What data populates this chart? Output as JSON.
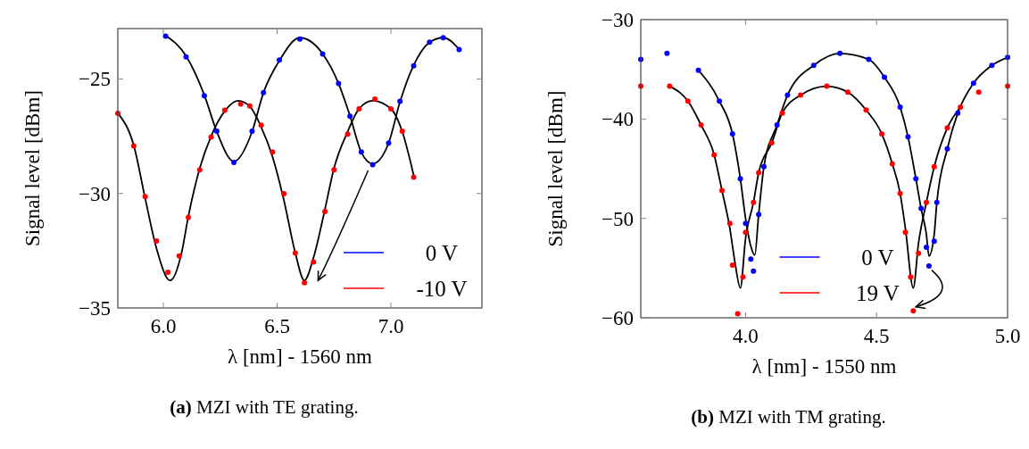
{
  "chart_data": [
    {
      "type": "scatter",
      "xlabel": "λ [nm] - 1560 nm",
      "ylabel": "Signal level [dBm]",
      "xlim": [
        5.8,
        7.4
      ],
      "ylim": [
        -35,
        -22.8
      ],
      "xticks": [
        {
          "value": 6,
          "label": "6.0"
        },
        {
          "value": 6.5,
          "label": "6.5"
        },
        {
          "value": 7,
          "label": "7.0"
        }
      ],
      "yticks": [
        {
          "value": -35,
          "label": "−35"
        },
        {
          "value": -30,
          "label": "−30"
        },
        {
          "value": -25,
          "label": "−25"
        }
      ],
      "marker": "circle",
      "legend": "bottom right",
      "grid": false,
      "annotations": [
        "(a) MZI with TE grating."
      ],
      "series": [
        {
          "name": "0 V",
          "color": "#0000ff",
          "x": [
            6.01,
            6.1,
            6.18,
            6.235,
            6.31,
            6.39,
            6.44,
            6.51,
            6.6,
            6.7,
            6.77,
            6.82,
            6.87,
            6.92,
            6.99,
            7.04,
            7.1,
            7.17,
            7.23,
            7.3
          ],
          "values": [
            -23.13,
            -24.04,
            -25.73,
            -27.28,
            -28.65,
            -27.28,
            -25.6,
            -24.17,
            -23.26,
            -23.91,
            -25.2,
            -26.63,
            -28.19,
            -28.74,
            -27.8,
            -25.98,
            -24.43,
            -23.39,
            -23.2,
            -23.72
          ]
        },
        {
          "name": "-10 V",
          "color": "#ff0000",
          "x": [
            5.8,
            5.87,
            5.92,
            5.97,
            6.02,
            6.07,
            6.11,
            6.16,
            6.21,
            6.27,
            6.34,
            6.38,
            6.43,
            6.48,
            6.53,
            6.58,
            6.62,
            6.66,
            6.71,
            6.75,
            6.81,
            6.86,
            6.93,
            7.0,
            7.05,
            7.1
          ],
          "values": [
            -26.5,
            -27.93,
            -30.14,
            -32.08,
            -33.44,
            -32.73,
            -31.04,
            -28.97,
            -27.54,
            -26.37,
            -26.09,
            -26.18,
            -27.02,
            -28.19,
            -30.01,
            -32.6,
            -33.9,
            -32.99,
            -30.79,
            -28.97,
            -27.41,
            -26.31,
            -25.88,
            -26.31,
            -27.28,
            -29.29
          ]
        },
        {
          "type": "line",
          "marker": "none",
          "color": "#000000",
          "x": [
            6.01,
            6.1,
            6.18,
            6.235,
            6.31,
            6.39,
            6.44,
            6.51,
            6.6,
            6.7,
            6.77,
            6.82,
            6.87,
            6.92,
            6.99,
            7.04,
            7.1,
            7.17,
            7.23,
            7.3
          ],
          "values": [
            -23.1,
            -24.0,
            -25.7,
            -27.3,
            -28.6,
            -27.3,
            -25.6,
            -24.2,
            -23.2,
            -23.9,
            -25.2,
            -26.6,
            -28.2,
            -28.7,
            -27.8,
            -26.0,
            -24.4,
            -23.4,
            -23.2,
            -23.7
          ]
        },
        {
          "type": "line",
          "marker": "none",
          "color": "#000000",
          "x": [
            5.8,
            5.87,
            5.92,
            5.97,
            6.03,
            6.08,
            6.11,
            6.16,
            6.21,
            6.27,
            6.33,
            6.38,
            6.43,
            6.48,
            6.53,
            6.58,
            6.62,
            6.66,
            6.71,
            6.75,
            6.81,
            6.86,
            6.92,
            7.0,
            7.05,
            7.1
          ],
          "values": [
            -26.5,
            -27.9,
            -30.2,
            -32.4,
            -33.8,
            -32.6,
            -31.0,
            -28.9,
            -27.5,
            -26.4,
            -25.95,
            -26.2,
            -27.1,
            -28.4,
            -30.3,
            -32.6,
            -33.8,
            -32.8,
            -30.7,
            -28.9,
            -27.3,
            -26.3,
            -25.95,
            -26.3,
            -27.3,
            -29.2
          ]
        }
      ]
    },
    {
      "type": "scatter",
      "xlabel": "λ [nm] - 1550 nm",
      "ylabel": "Signal level [dBm]",
      "xlim": [
        3.6,
        5.0
      ],
      "ylim": [
        -60,
        -30
      ],
      "xticks": [
        {
          "value": 4,
          "label": "4.0"
        },
        {
          "value": 4.5,
          "label": "4.5"
        },
        {
          "value": 5,
          "label": "5.0"
        }
      ],
      "yticks": [
        {
          "value": -60,
          "label": "−60"
        },
        {
          "value": -50,
          "label": "−50"
        },
        {
          "value": -40,
          "label": "−40"
        },
        {
          "value": -30,
          "label": "−30"
        }
      ],
      "marker": "circle",
      "legend": "bottom",
      "grid": false,
      "annotations": [
        "(b) MZI with TM grating."
      ],
      "series": [
        {
          "name": "0 V",
          "color": "#0000ff",
          "x": [
            3.6,
            3.7,
            3.82,
            3.9,
            3.95,
            3.98,
            4.0,
            4.02,
            4.03,
            4.05,
            4.07,
            4.12,
            4.16,
            4.26,
            4.36,
            4.47,
            4.53,
            4.59,
            4.62,
            4.65,
            4.67,
            4.69,
            4.7,
            4.72,
            4.73,
            4.77,
            4.81,
            4.87,
            4.94,
            5.0
          ],
          "values": [
            -34.0,
            -33.4,
            -35.1,
            -38.2,
            -41.5,
            -46.0,
            -50.5,
            -54.1,
            -55.3,
            -49.6,
            -44.8,
            -40.6,
            -37.6,
            -34.6,
            -33.4,
            -34.0,
            -35.8,
            -38.8,
            -41.8,
            -46.0,
            -49.0,
            -52.9,
            -54.8,
            -52.3,
            -48.4,
            -43.0,
            -39.4,
            -36.4,
            -34.6,
            -33.8
          ]
        },
        {
          "name": "19 V",
          "color": "#ff0000",
          "x": [
            3.6,
            3.71,
            3.78,
            3.83,
            3.88,
            3.91,
            3.94,
            3.95,
            3.97,
            3.99,
            4.0,
            4.03,
            4.05,
            4.1,
            4.14,
            4.21,
            4.31,
            4.39,
            4.46,
            4.52,
            4.56,
            4.59,
            4.61,
            4.63,
            4.64,
            4.66,
            4.69,
            4.72,
            4.77,
            4.82,
            4.89,
            5.0
          ],
          "values": [
            -36.7,
            -36.7,
            -38.2,
            -40.6,
            -43.6,
            -47.2,
            -50.5,
            -54.7,
            -59.6,
            -55.9,
            -51.4,
            -48.4,
            -45.4,
            -42.4,
            -39.4,
            -37.6,
            -36.7,
            -37.3,
            -39.1,
            -41.5,
            -44.5,
            -47.5,
            -51.4,
            -55.9,
            -59.3,
            -53.5,
            -48.4,
            -44.8,
            -40.9,
            -38.8,
            -37.3,
            -36.7
          ]
        },
        {
          "type": "line",
          "marker": "none",
          "color": "#000000",
          "x": [
            3.82,
            3.9,
            3.95,
            3.98,
            4.0,
            4.02,
            4.035,
            4.05,
            4.07,
            4.12,
            4.16,
            4.26,
            4.36,
            4.47,
            4.53,
            4.59,
            4.62,
            4.65,
            4.67,
            4.69,
            4.7,
            4.72,
            4.73,
            4.77,
            4.81,
            4.87,
            4.94,
            5.0
          ],
          "values": [
            -35.1,
            -38.2,
            -41.5,
            -46.0,
            -50.0,
            -52.8,
            -53.7,
            -49.6,
            -44.8,
            -40.6,
            -37.6,
            -34.6,
            -33.4,
            -34.0,
            -35.8,
            -38.8,
            -41.8,
            -46.0,
            -49.0,
            -51.6,
            -53.8,
            -51.6,
            -48.4,
            -43.0,
            -39.4,
            -36.4,
            -34.6,
            -33.8
          ]
        },
        {
          "type": "line",
          "marker": "none",
          "color": "#000000",
          "x": [
            3.71,
            3.78,
            3.83,
            3.88,
            3.91,
            3.94,
            3.96,
            3.98,
            4.0,
            4.03,
            4.05,
            4.1,
            4.14,
            4.21,
            4.31,
            4.39,
            4.46,
            4.52,
            4.56,
            4.59,
            4.61,
            4.64,
            4.66,
            4.69,
            4.72,
            4.77,
            4.82
          ],
          "values": [
            -36.7,
            -38.2,
            -40.6,
            -43.6,
            -47.2,
            -51.0,
            -54.5,
            -57.0,
            -52.0,
            -48.4,
            -45.4,
            -42.4,
            -39.4,
            -37.6,
            -36.7,
            -37.3,
            -39.1,
            -41.5,
            -44.5,
            -47.5,
            -51.0,
            -57.0,
            -52.5,
            -48.4,
            -44.8,
            -40.9,
            -38.8
          ]
        }
      ]
    }
  ]
}
